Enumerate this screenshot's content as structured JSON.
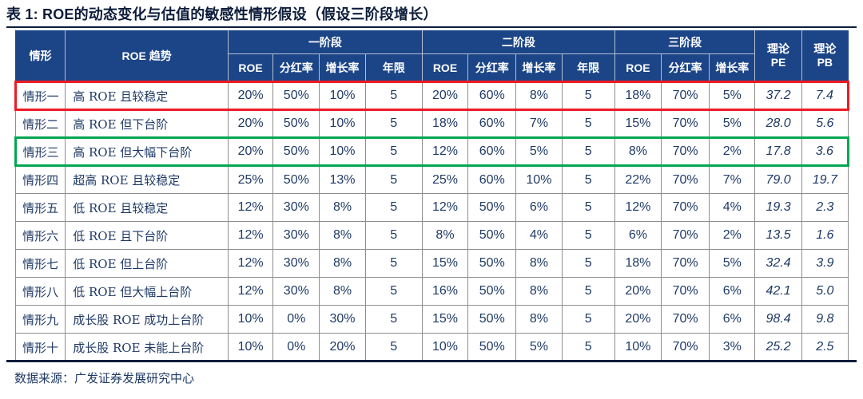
{
  "title": "表 1:  ROE的动态变化与估值的敏感性情形假设（假设三阶段增长）",
  "source": "数据来源：广发证券发展研究中心",
  "colors": {
    "header_bg": "#1C4587",
    "header_grid": "#B5BFD2",
    "header_text": "#FFFFFF",
    "data_text": "#1F3A66",
    "grid": "#8E8E8E",
    "highlight_red": "#EC1C24",
    "highlight_green": "#00A651",
    "rule": "#0E1D3B",
    "title_text": "#0C1C3A"
  },
  "table": {
    "header": {
      "scenario": "情形",
      "trend": "ROE 趋势",
      "phase1": "一阶段",
      "phase2": "二阶段",
      "phase3": "三阶段",
      "sub": [
        "ROE",
        "分红率",
        "增长率",
        "年限"
      ],
      "pe_top": "理论",
      "pe_bottom": "PE",
      "pb_top": "理论",
      "pb_bottom": "PB"
    },
    "rows": [
      {
        "scenario": "情形一",
        "trend": "高 ROE 且较稳定",
        "p1": [
          "20%",
          "50%",
          "10%",
          "5"
        ],
        "p2": [
          "20%",
          "60%",
          "8%",
          "5"
        ],
        "p3": [
          "18%",
          "70%",
          "5%"
        ],
        "pe": "37.2",
        "pb": "7.4",
        "highlight": "red"
      },
      {
        "scenario": "情形二",
        "trend": "高 ROE 但下台阶",
        "p1": [
          "20%",
          "50%",
          "10%",
          "5"
        ],
        "p2": [
          "18%",
          "60%",
          "7%",
          "5"
        ],
        "p3": [
          "15%",
          "70%",
          "5%"
        ],
        "pe": "28.0",
        "pb": "5.6",
        "highlight": ""
      },
      {
        "scenario": "情形三",
        "trend": "高 ROE 但大幅下台阶",
        "p1": [
          "20%",
          "50%",
          "10%",
          "5"
        ],
        "p2": [
          "12%",
          "60%",
          "5%",
          "5"
        ],
        "p3": [
          "8%",
          "70%",
          "2%"
        ],
        "pe": "17.8",
        "pb": "3.6",
        "highlight": "green"
      },
      {
        "scenario": "情形四",
        "trend": "超高 ROE 且较稳定",
        "p1": [
          "25%",
          "50%",
          "13%",
          "5"
        ],
        "p2": [
          "25%",
          "60%",
          "10%",
          "5"
        ],
        "p3": [
          "22%",
          "70%",
          "7%"
        ],
        "pe": "79.0",
        "pb": "19.7",
        "highlight": ""
      },
      {
        "scenario": "情形五",
        "trend": "低 ROE 且较稳定",
        "p1": [
          "12%",
          "30%",
          "8%",
          "5"
        ],
        "p2": [
          "12%",
          "50%",
          "6%",
          "5"
        ],
        "p3": [
          "12%",
          "70%",
          "4%"
        ],
        "pe": "19.3",
        "pb": "2.3",
        "highlight": ""
      },
      {
        "scenario": "情形六",
        "trend": "低 ROE 且下台阶",
        "p1": [
          "12%",
          "30%",
          "8%",
          "5"
        ],
        "p2": [
          "8%",
          "50%",
          "4%",
          "5"
        ],
        "p3": [
          "6%",
          "70%",
          "2%"
        ],
        "pe": "13.5",
        "pb": "1.6",
        "highlight": ""
      },
      {
        "scenario": "情形七",
        "trend": "低 ROE 但上台阶",
        "p1": [
          "12%",
          "30%",
          "8%",
          "5"
        ],
        "p2": [
          "15%",
          "50%",
          "8%",
          "5"
        ],
        "p3": [
          "18%",
          "70%",
          "5%"
        ],
        "pe": "32.4",
        "pb": "3.9",
        "highlight": ""
      },
      {
        "scenario": "情形八",
        "trend": "低 ROE 但大幅上台阶",
        "p1": [
          "12%",
          "30%",
          "8%",
          "5"
        ],
        "p2": [
          "16%",
          "50%",
          "8%",
          "5"
        ],
        "p3": [
          "20%",
          "70%",
          "6%"
        ],
        "pe": "42.1",
        "pb": "5.0",
        "highlight": ""
      },
      {
        "scenario": "情形九",
        "trend": "成长股 ROE 成功上台阶",
        "p1": [
          "10%",
          "0%",
          "30%",
          "5"
        ],
        "p2": [
          "15%",
          "50%",
          "8%",
          "5"
        ],
        "p3": [
          "20%",
          "70%",
          "6%"
        ],
        "pe": "98.4",
        "pb": "9.8",
        "highlight": ""
      },
      {
        "scenario": "情形十",
        "trend": "成长股 ROE 未能上台阶",
        "p1": [
          "10%",
          "0%",
          "20%",
          "5"
        ],
        "p2": [
          "10%",
          "50%",
          "5%",
          "5"
        ],
        "p3": [
          "10%",
          "70%",
          "3%"
        ],
        "pe": "25.2",
        "pb": "2.5",
        "highlight": ""
      }
    ]
  }
}
